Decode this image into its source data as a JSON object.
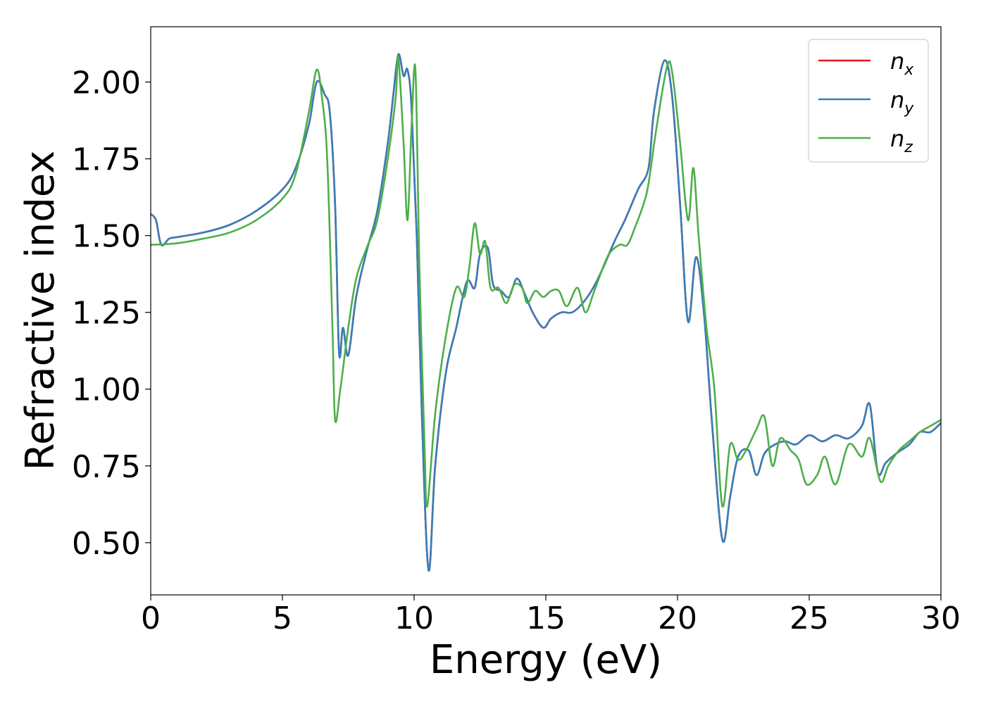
{
  "chart_data": {
    "type": "line",
    "xlabel": "Energy (eV)",
    "ylabel": "Refractive index",
    "xlim": [
      0,
      30
    ],
    "ylim": [
      0.33,
      2.18
    ],
    "xticks": [
      0,
      5,
      10,
      15,
      20,
      25,
      30
    ],
    "xtick_labels": [
      "0",
      "5",
      "10",
      "15",
      "20",
      "25",
      "30"
    ],
    "yticks": [
      0.5,
      0.75,
      1.0,
      1.25,
      1.5,
      1.75,
      2.0
    ],
    "ytick_labels": [
      "0.50",
      "0.75",
      "1.00",
      "1.25",
      "1.50",
      "1.75",
      "2.00"
    ],
    "grid": false,
    "legend_position": "top-right",
    "series": [
      {
        "name": "n_x",
        "legend_main": "n",
        "legend_sub": "x",
        "color": "#e41a1c",
        "points": [
          [
            0,
            1.57
          ],
          [
            0.2,
            1.55
          ],
          [
            0.4,
            1.47
          ],
          [
            0.7,
            1.49
          ],
          [
            1,
            1.495
          ],
          [
            2,
            1.51
          ],
          [
            3,
            1.535
          ],
          [
            4,
            1.58
          ],
          [
            5,
            1.65
          ],
          [
            5.5,
            1.72
          ],
          [
            6.0,
            1.86
          ],
          [
            6.3,
            2.0
          ],
          [
            6.6,
            1.96
          ],
          [
            6.8,
            1.9
          ],
          [
            7.0,
            1.6
          ],
          [
            7.15,
            1.12
          ],
          [
            7.3,
            1.2
          ],
          [
            7.5,
            1.11
          ],
          [
            7.8,
            1.3
          ],
          [
            8.2,
            1.45
          ],
          [
            8.6,
            1.58
          ],
          [
            9.0,
            1.8
          ],
          [
            9.2,
            1.95
          ],
          [
            9.4,
            2.09
          ],
          [
            9.6,
            2.02
          ],
          [
            9.75,
            2.04
          ],
          [
            9.9,
            1.92
          ],
          [
            10.1,
            1.5
          ],
          [
            10.3,
            0.9
          ],
          [
            10.55,
            0.41
          ],
          [
            10.8,
            0.75
          ],
          [
            11.2,
            1.05
          ],
          [
            11.6,
            1.2
          ],
          [
            12.0,
            1.35
          ],
          [
            12.3,
            1.33
          ],
          [
            12.5,
            1.44
          ],
          [
            12.8,
            1.46
          ],
          [
            13.0,
            1.34
          ],
          [
            13.3,
            1.32
          ],
          [
            13.6,
            1.3
          ],
          [
            13.9,
            1.36
          ],
          [
            14.2,
            1.31
          ],
          [
            14.5,
            1.25
          ],
          [
            14.9,
            1.2
          ],
          [
            15.2,
            1.23
          ],
          [
            15.6,
            1.25
          ],
          [
            16.0,
            1.25
          ],
          [
            16.4,
            1.28
          ],
          [
            16.8,
            1.33
          ],
          [
            17.2,
            1.4
          ],
          [
            17.6,
            1.48
          ],
          [
            18.0,
            1.55
          ],
          [
            18.5,
            1.65
          ],
          [
            18.9,
            1.72
          ],
          [
            19.1,
            1.9
          ],
          [
            19.5,
            2.07
          ],
          [
            19.8,
            1.95
          ],
          [
            20.1,
            1.6
          ],
          [
            20.4,
            1.22
          ],
          [
            20.7,
            1.43
          ],
          [
            21.0,
            1.25
          ],
          [
            21.3,
            0.9
          ],
          [
            21.7,
            0.51
          ],
          [
            22.0,
            0.65
          ],
          [
            22.3,
            0.78
          ],
          [
            22.7,
            0.8
          ],
          [
            23.0,
            0.72
          ],
          [
            23.3,
            0.79
          ],
          [
            23.7,
            0.82
          ],
          [
            24.1,
            0.83
          ],
          [
            24.5,
            0.82
          ],
          [
            25.0,
            0.85
          ],
          [
            25.5,
            0.83
          ],
          [
            26.0,
            0.85
          ],
          [
            26.5,
            0.84
          ],
          [
            27.0,
            0.88
          ],
          [
            27.3,
            0.95
          ],
          [
            27.6,
            0.73
          ],
          [
            27.9,
            0.76
          ],
          [
            28.3,
            0.79
          ],
          [
            28.8,
            0.82
          ],
          [
            29.2,
            0.86
          ],
          [
            29.6,
            0.86
          ],
          [
            30,
            0.89
          ]
        ]
      },
      {
        "name": "n_y",
        "legend_main": "n",
        "legend_sub": "y",
        "color": "#377eb8",
        "points": [
          [
            0,
            1.57
          ],
          [
            0.2,
            1.55
          ],
          [
            0.4,
            1.47
          ],
          [
            0.7,
            1.49
          ],
          [
            1,
            1.495
          ],
          [
            2,
            1.51
          ],
          [
            3,
            1.535
          ],
          [
            4,
            1.58
          ],
          [
            5,
            1.65
          ],
          [
            5.5,
            1.72
          ],
          [
            6.0,
            1.86
          ],
          [
            6.3,
            2.0
          ],
          [
            6.6,
            1.96
          ],
          [
            6.8,
            1.9
          ],
          [
            7.0,
            1.6
          ],
          [
            7.15,
            1.12
          ],
          [
            7.3,
            1.2
          ],
          [
            7.5,
            1.11
          ],
          [
            7.8,
            1.3
          ],
          [
            8.2,
            1.45
          ],
          [
            8.6,
            1.58
          ],
          [
            9.0,
            1.8
          ],
          [
            9.2,
            1.95
          ],
          [
            9.4,
            2.09
          ],
          [
            9.6,
            2.02
          ],
          [
            9.75,
            2.04
          ],
          [
            9.9,
            1.92
          ],
          [
            10.1,
            1.5
          ],
          [
            10.3,
            0.9
          ],
          [
            10.55,
            0.41
          ],
          [
            10.8,
            0.75
          ],
          [
            11.2,
            1.05
          ],
          [
            11.6,
            1.2
          ],
          [
            12.0,
            1.35
          ],
          [
            12.3,
            1.33
          ],
          [
            12.5,
            1.44
          ],
          [
            12.8,
            1.46
          ],
          [
            13.0,
            1.34
          ],
          [
            13.3,
            1.32
          ],
          [
            13.6,
            1.3
          ],
          [
            13.9,
            1.36
          ],
          [
            14.2,
            1.31
          ],
          [
            14.5,
            1.25
          ],
          [
            14.9,
            1.2
          ],
          [
            15.2,
            1.23
          ],
          [
            15.6,
            1.25
          ],
          [
            16.0,
            1.25
          ],
          [
            16.4,
            1.28
          ],
          [
            16.8,
            1.33
          ],
          [
            17.2,
            1.4
          ],
          [
            17.6,
            1.48
          ],
          [
            18.0,
            1.55
          ],
          [
            18.5,
            1.65
          ],
          [
            18.9,
            1.72
          ],
          [
            19.1,
            1.9
          ],
          [
            19.5,
            2.07
          ],
          [
            19.8,
            1.95
          ],
          [
            20.1,
            1.6
          ],
          [
            20.4,
            1.22
          ],
          [
            20.7,
            1.43
          ],
          [
            21.0,
            1.25
          ],
          [
            21.3,
            0.9
          ],
          [
            21.7,
            0.51
          ],
          [
            22.0,
            0.65
          ],
          [
            22.3,
            0.78
          ],
          [
            22.7,
            0.8
          ],
          [
            23.0,
            0.72
          ],
          [
            23.3,
            0.79
          ],
          [
            23.7,
            0.82
          ],
          [
            24.1,
            0.83
          ],
          [
            24.5,
            0.82
          ],
          [
            25.0,
            0.85
          ],
          [
            25.5,
            0.83
          ],
          [
            26.0,
            0.85
          ],
          [
            26.5,
            0.84
          ],
          [
            27.0,
            0.88
          ],
          [
            27.3,
            0.95
          ],
          [
            27.6,
            0.73
          ],
          [
            27.9,
            0.76
          ],
          [
            28.3,
            0.79
          ],
          [
            28.8,
            0.82
          ],
          [
            29.2,
            0.86
          ],
          [
            29.6,
            0.86
          ],
          [
            30,
            0.89
          ]
        ]
      },
      {
        "name": "n_z",
        "legend_main": "n",
        "legend_sub": "z",
        "color": "#4daf4a",
        "points": [
          [
            0,
            1.47
          ],
          [
            1,
            1.475
          ],
          [
            2,
            1.49
          ],
          [
            3,
            1.51
          ],
          [
            4,
            1.55
          ],
          [
            5,
            1.62
          ],
          [
            5.5,
            1.7
          ],
          [
            6.0,
            1.9
          ],
          [
            6.3,
            2.04
          ],
          [
            6.5,
            1.95
          ],
          [
            6.7,
            1.75
          ],
          [
            6.9,
            1.2
          ],
          [
            7.0,
            0.9
          ],
          [
            7.2,
            1.0
          ],
          [
            7.5,
            1.2
          ],
          [
            7.8,
            1.36
          ],
          [
            8.2,
            1.46
          ],
          [
            8.6,
            1.55
          ],
          [
            9.0,
            1.75
          ],
          [
            9.3,
            1.95
          ],
          [
            9.4,
            2.08
          ],
          [
            9.6,
            1.8
          ],
          [
            9.75,
            1.55
          ],
          [
            9.9,
            1.85
          ],
          [
            10.05,
            2.04
          ],
          [
            10.2,
            1.4
          ],
          [
            10.4,
            0.8
          ],
          [
            10.5,
            0.62
          ],
          [
            10.8,
            0.92
          ],
          [
            11.2,
            1.17
          ],
          [
            11.6,
            1.33
          ],
          [
            11.9,
            1.3
          ],
          [
            12.1,
            1.4
          ],
          [
            12.3,
            1.54
          ],
          [
            12.5,
            1.44
          ],
          [
            12.7,
            1.48
          ],
          [
            12.9,
            1.33
          ],
          [
            13.2,
            1.33
          ],
          [
            13.5,
            1.28
          ],
          [
            13.8,
            1.34
          ],
          [
            14.1,
            1.33
          ],
          [
            14.3,
            1.28
          ],
          [
            14.6,
            1.32
          ],
          [
            14.9,
            1.3
          ],
          [
            15.2,
            1.32
          ],
          [
            15.5,
            1.32
          ],
          [
            15.8,
            1.27
          ],
          [
            16.2,
            1.33
          ],
          [
            16.5,
            1.25
          ],
          [
            16.8,
            1.31
          ],
          [
            17.1,
            1.38
          ],
          [
            17.4,
            1.44
          ],
          [
            17.8,
            1.47
          ],
          [
            18.1,
            1.47
          ],
          [
            18.4,
            1.53
          ],
          [
            18.7,
            1.6
          ],
          [
            18.9,
            1.67
          ],
          [
            19.2,
            1.85
          ],
          [
            19.6,
            2.05
          ],
          [
            19.8,
            2.03
          ],
          [
            20.1,
            1.8
          ],
          [
            20.4,
            1.55
          ],
          [
            20.6,
            1.72
          ],
          [
            20.8,
            1.5
          ],
          [
            21.1,
            1.2
          ],
          [
            21.4,
            1.0
          ],
          [
            21.7,
            0.62
          ],
          [
            22.0,
            0.82
          ],
          [
            22.3,
            0.77
          ],
          [
            22.6,
            0.8
          ],
          [
            23.0,
            0.87
          ],
          [
            23.3,
            0.91
          ],
          [
            23.6,
            0.75
          ],
          [
            23.9,
            0.84
          ],
          [
            24.3,
            0.8
          ],
          [
            24.6,
            0.77
          ],
          [
            24.9,
            0.69
          ],
          [
            25.3,
            0.72
          ],
          [
            25.6,
            0.78
          ],
          [
            26.0,
            0.69
          ],
          [
            26.5,
            0.82
          ],
          [
            27.0,
            0.78
          ],
          [
            27.3,
            0.84
          ],
          [
            27.7,
            0.7
          ],
          [
            28.0,
            0.75
          ],
          [
            28.4,
            0.8
          ],
          [
            28.8,
            0.83
          ],
          [
            29.2,
            0.86
          ],
          [
            29.6,
            0.88
          ],
          [
            30,
            0.9
          ]
        ]
      }
    ]
  }
}
